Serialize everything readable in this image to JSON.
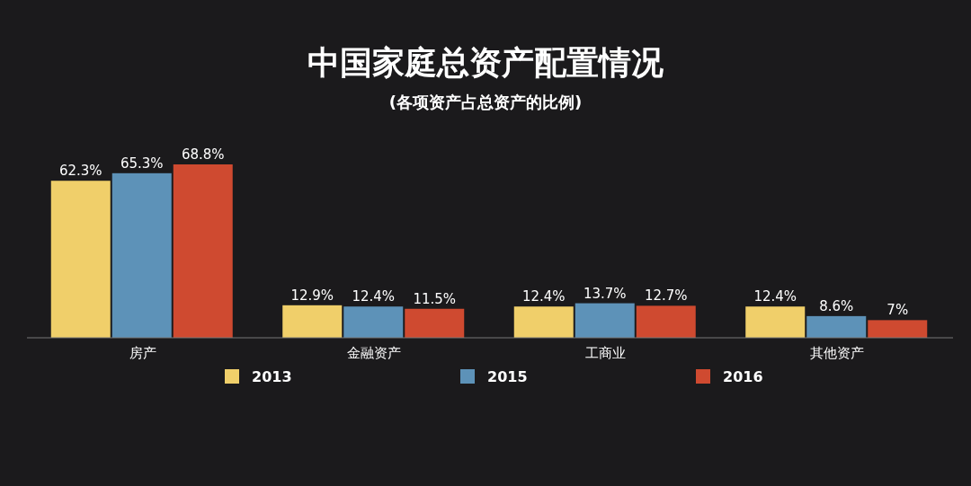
{
  "chart_data": {
    "type": "bar",
    "title": "中国家庭总资产配置情况",
    "subtitle": "(各项资产占总资产的比例)",
    "categories": [
      "房产",
      "金融资产",
      "工商业",
      "其他资产"
    ],
    "series": [
      {
        "name": "2013",
        "color": "#f0cf6a",
        "values": [
          62.3,
          12.9,
          12.4,
          12.4
        ],
        "value_labels": [
          "62.3%",
          "12.9%",
          "12.4%",
          "12.4%"
        ]
      },
      {
        "name": "2015",
        "color": "#5d92b8",
        "values": [
          65.3,
          12.4,
          13.7,
          8.6
        ],
        "value_labels": [
          "65.3%",
          "12.4%",
          "13.7%",
          "8.6%"
        ]
      },
      {
        "name": "2016",
        "color": "#cf4a30",
        "values": [
          68.8,
          11.5,
          12.7,
          7
        ],
        "value_labels": [
          "68.8%",
          "11.5%",
          "12.7%",
          "7%"
        ]
      }
    ],
    "legend": "bottom"
  }
}
